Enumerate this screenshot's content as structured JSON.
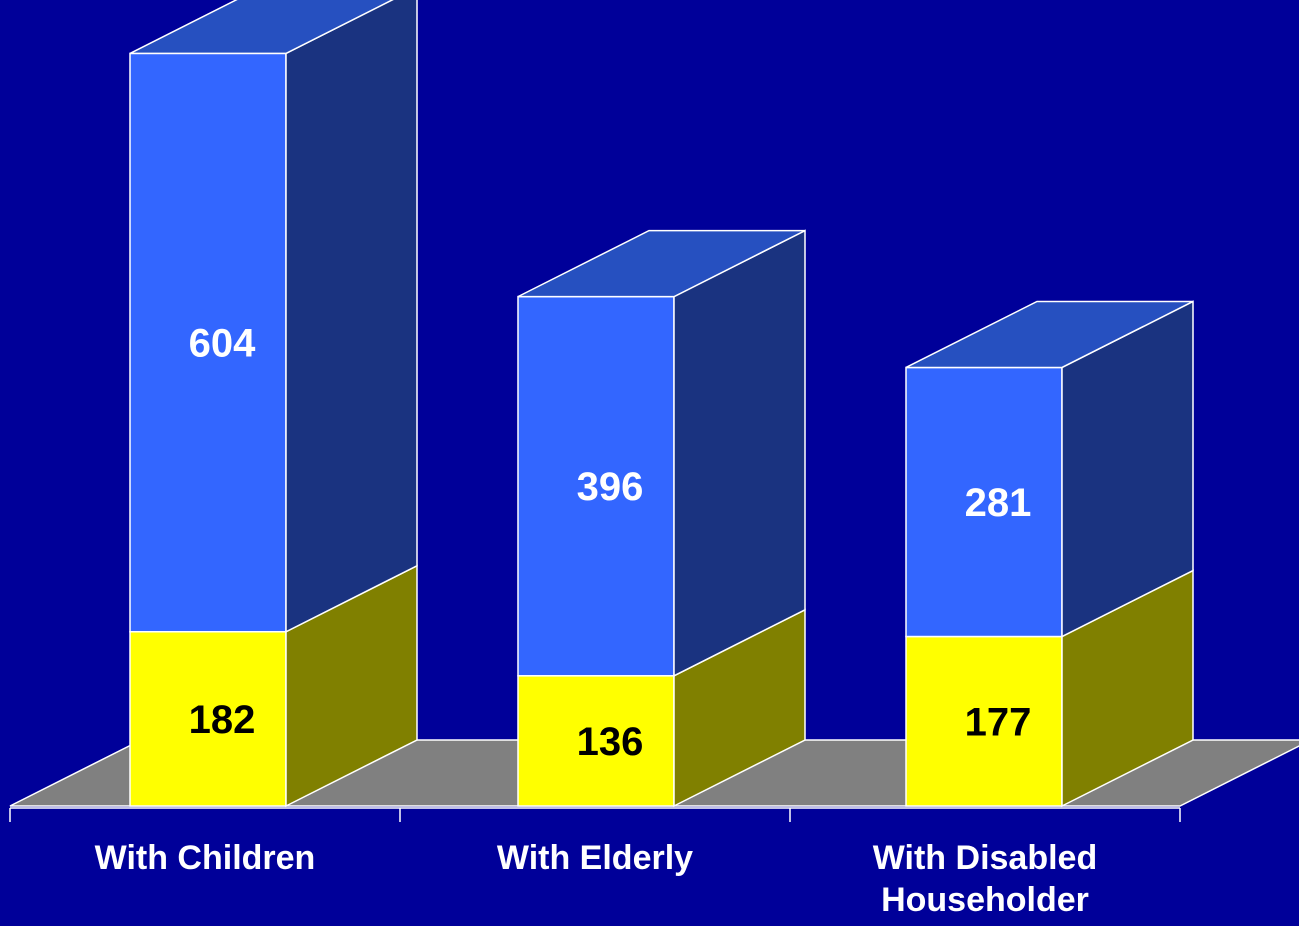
{
  "chart_data": {
    "type": "bar",
    "stacked": true,
    "three_d": true,
    "categories": [
      "With Children",
      "With Elderly",
      [
        "With Disabled",
        "Householder"
      ]
    ],
    "series": [
      {
        "values": [
          182,
          136,
          177
        ],
        "color": "#ffff00",
        "side_color": "#808000",
        "label_color": "#000000"
      },
      {
        "values": [
          604,
          396,
          281
        ],
        "color": "#3366ff",
        "side_color": "#1a3380",
        "top_color": "#2650c0",
        "label_color": "#ffffff"
      }
    ],
    "title": "",
    "xlabel": "",
    "ylabel": "",
    "ylim": [
      0,
      786
    ],
    "grid": false,
    "legend": false,
    "colors": {
      "background": "#000099",
      "floor": "#808080",
      "axis": "#ffffff"
    }
  }
}
